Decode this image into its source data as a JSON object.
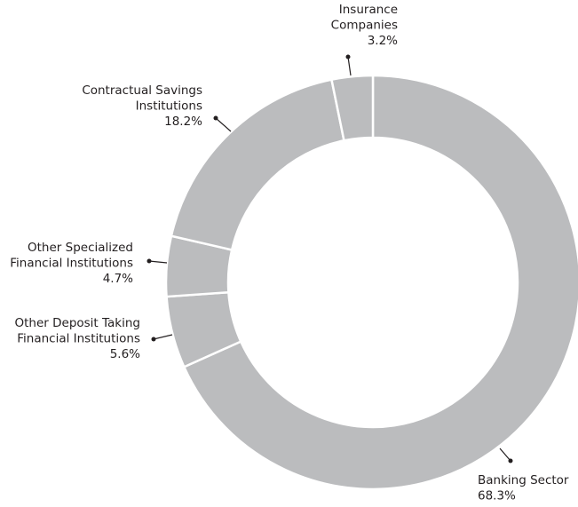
{
  "chart_data": {
    "type": "donut",
    "categories": [
      [
        "Banking Sector"
      ],
      [
        "Other Deposit Taking",
        "Financial Institutions"
      ],
      [
        "Other Specialized",
        "Financial Institutions"
      ],
      [
        "Contractual Savings",
        "Institutions"
      ],
      [
        "Insurance",
        "Companies"
      ]
    ],
    "values": [
      68.3,
      5.6,
      4.7,
      18.2,
      3.2
    ],
    "value_labels": [
      "68.3%",
      "5.6%",
      "4.7%",
      "18.2%",
      "3.2%"
    ],
    "color": "#bbbcbe"
  }
}
